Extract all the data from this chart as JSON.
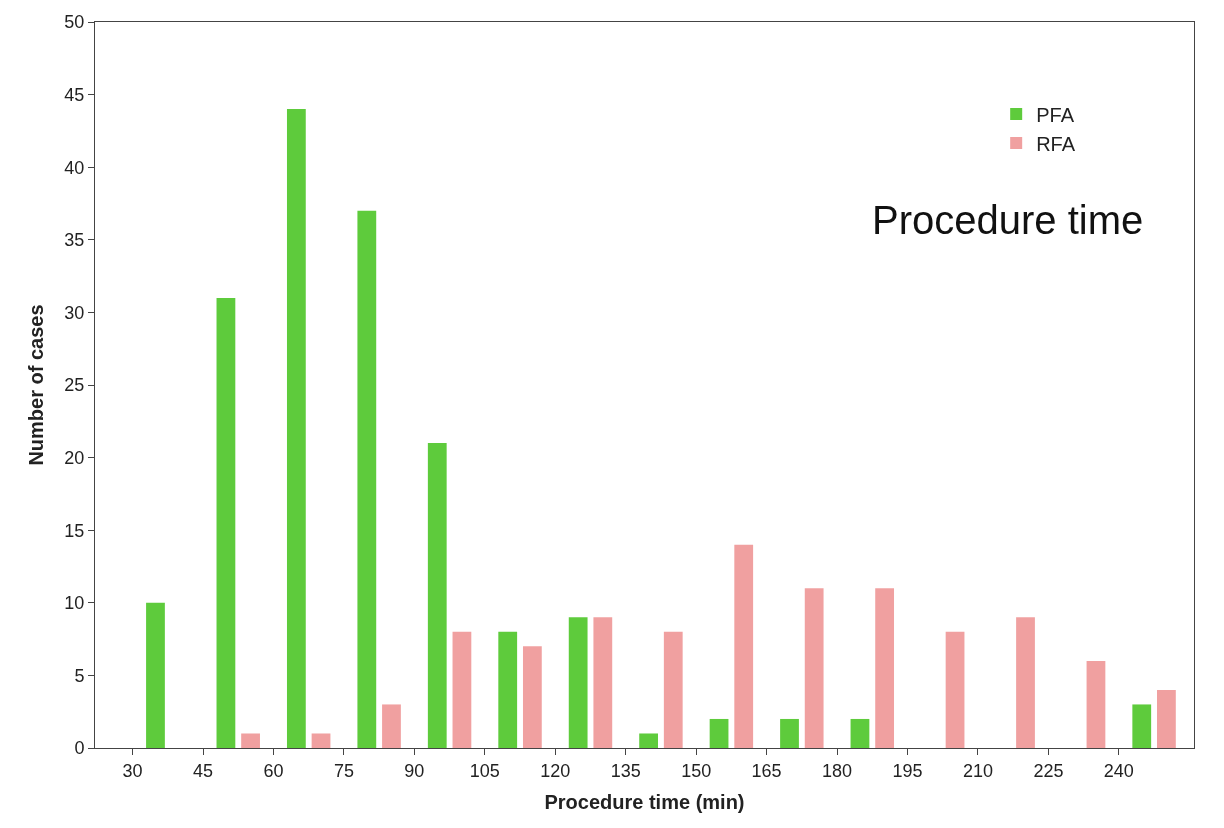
{
  "chart_data": {
    "type": "bar",
    "xlabel": "Procedure time (min)",
    "ylabel": "Number of cases",
    "x": [
      37.5,
      52.5,
      67.5,
      82.5,
      97.5,
      112.5,
      127.5,
      142.5,
      157.5,
      172.5,
      187.5,
      202.5,
      217.5,
      232.5,
      247.5
    ],
    "series": [
      {
        "name": "PFA",
        "color": "#5ecb3c",
        "values": [
          10,
          31,
          44,
          37,
          21,
          8,
          9,
          1,
          2,
          2,
          2,
          0,
          0,
          0,
          3
        ]
      },
      {
        "name": "RFA",
        "color": "#f0a0a0",
        "values": [
          0,
          1,
          1,
          3,
          8,
          7,
          9,
          8,
          14,
          11,
          11,
          8,
          9,
          6,
          4
        ]
      }
    ],
    "xlim": [
      22,
      256
    ],
    "xticks": [
      30,
      45,
      60,
      75,
      90,
      105,
      120,
      135,
      150,
      165,
      180,
      195,
      210,
      225,
      240
    ],
    "ylim": [
      0,
      50
    ],
    "yticks": [
      0,
      5,
      10,
      15,
      20,
      25,
      30,
      35,
      40,
      45,
      50
    ],
    "legend": "top right",
    "annotations": [
      "Procedure time"
    ]
  }
}
